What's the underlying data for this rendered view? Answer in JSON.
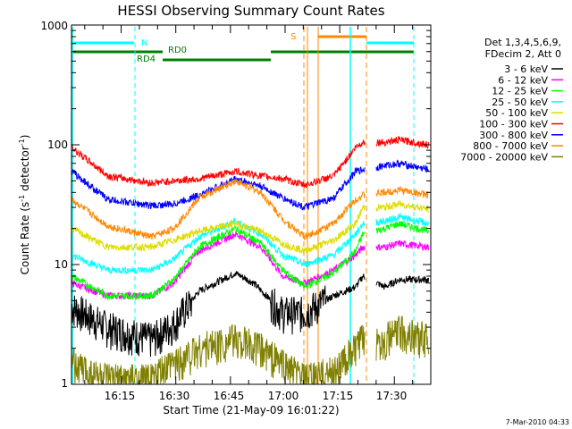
{
  "chart_data": {
    "type": "line",
    "title": "HESSI Observing Summary Count Rates",
    "xlabel": "Start Time (21-May-09 16:01:22)",
    "ylabel_main": "Count Rate (s",
    "ylabel_sup1": "-1",
    "ylabel_mid": " detector",
    "ylabel_sup2": "-1",
    "ylabel_end": ")",
    "x_ticks": [
      "16:15",
      "16:30",
      "16:45",
      "17:00",
      "17:15",
      "17:30"
    ],
    "y_ticks": [
      "1",
      "10",
      "100",
      "1000"
    ],
    "yscale": "log",
    "ylim": [
      1,
      1000
    ],
    "xlim": [
      "16:01:22",
      "17:40:00"
    ],
    "legend_header": [
      "Det 1,3,4,5,6,9,",
      "FDecim 2, Att 0"
    ],
    "data_gaps": [
      [
        "17:22",
        "17:25"
      ]
    ],
    "series": [
      {
        "name": "3 - 6 keV",
        "color": "#000000",
        "values": [
          [
            0,
            4.5
          ],
          [
            10,
            3.0
          ],
          [
            22,
            2.4
          ],
          [
            28,
            3.2
          ],
          [
            35,
            6
          ],
          [
            45,
            8.5
          ],
          [
            50,
            7
          ],
          [
            58,
            4
          ],
          [
            64,
            4.0
          ],
          [
            72,
            5.5
          ],
          [
            78,
            6.5
          ],
          [
            80,
            8
          ],
          [
            86,
            6.5
          ],
          [
            90,
            7.5
          ],
          [
            98,
            7.5
          ]
        ]
      },
      {
        "name": "6 - 12 keV",
        "color": "#ff00ff",
        "values": [
          [
            0,
            7
          ],
          [
            10,
            5.5
          ],
          [
            22,
            5.5
          ],
          [
            28,
            7
          ],
          [
            35,
            13
          ],
          [
            45,
            18
          ],
          [
            52,
            14
          ],
          [
            58,
            8
          ],
          [
            64,
            7
          ],
          [
            72,
            9
          ],
          [
            78,
            12
          ],
          [
            80,
            14
          ],
          [
            86,
            14
          ],
          [
            90,
            15
          ],
          [
            98,
            14
          ]
        ]
      },
      {
        "name": "12 - 25 keV",
        "color": "#00ff00",
        "values": [
          [
            0,
            8
          ],
          [
            10,
            5.5
          ],
          [
            22,
            5.5
          ],
          [
            28,
            7.5
          ],
          [
            35,
            14
          ],
          [
            45,
            20
          ],
          [
            52,
            15
          ],
          [
            58,
            9
          ],
          [
            64,
            6.5
          ],
          [
            72,
            8.5
          ],
          [
            78,
            13
          ],
          [
            80,
            18
          ],
          [
            86,
            20
          ],
          [
            90,
            22
          ],
          [
            98,
            19
          ]
        ]
      },
      {
        "name": "25 - 50 keV",
        "color": "#00ffff",
        "values": [
          [
            0,
            12
          ],
          [
            10,
            9
          ],
          [
            22,
            9
          ],
          [
            28,
            11
          ],
          [
            35,
            17
          ],
          [
            45,
            23
          ],
          [
            52,
            18
          ],
          [
            58,
            12
          ],
          [
            64,
            10
          ],
          [
            72,
            12
          ],
          [
            78,
            18
          ],
          [
            80,
            22
          ],
          [
            86,
            23
          ],
          [
            90,
            25
          ],
          [
            98,
            22
          ]
        ]
      },
      {
        "name": "50 - 100 keV",
        "color": "#dddd00",
        "values": [
          [
            0,
            20
          ],
          [
            10,
            14
          ],
          [
            22,
            14
          ],
          [
            28,
            16
          ],
          [
            35,
            19
          ],
          [
            45,
            22
          ],
          [
            52,
            19
          ],
          [
            58,
            15
          ],
          [
            64,
            13
          ],
          [
            72,
            16
          ],
          [
            78,
            22
          ],
          [
            80,
            30
          ],
          [
            86,
            30
          ],
          [
            90,
            32
          ],
          [
            98,
            29
          ]
        ]
      },
      {
        "name": "100 - 300 keV",
        "color": "#ff0000",
        "values": [
          [
            0,
            95
          ],
          [
            10,
            55
          ],
          [
            22,
            48
          ],
          [
            28,
            50
          ],
          [
            35,
            52
          ],
          [
            45,
            60
          ],
          [
            52,
            55
          ],
          [
            58,
            52
          ],
          [
            64,
            46
          ],
          [
            72,
            55
          ],
          [
            78,
            95
          ],
          [
            80,
            105
          ],
          [
            86,
            105
          ],
          [
            90,
            110
          ],
          [
            98,
            100
          ]
        ]
      },
      {
        "name": "300 - 800 keV",
        "color": "#0000ff",
        "values": [
          [
            0,
            60
          ],
          [
            10,
            35
          ],
          [
            22,
            31
          ],
          [
            28,
            32
          ],
          [
            35,
            38
          ],
          [
            45,
            52
          ],
          [
            52,
            45
          ],
          [
            58,
            36
          ],
          [
            64,
            30
          ],
          [
            72,
            36
          ],
          [
            78,
            60
          ],
          [
            80,
            62
          ],
          [
            86,
            67
          ],
          [
            90,
            70
          ],
          [
            98,
            62
          ]
        ]
      },
      {
        "name": "800 - 7000 keV",
        "color": "#ff8800",
        "values": [
          [
            0,
            35
          ],
          [
            10,
            21
          ],
          [
            22,
            17
          ],
          [
            28,
            20
          ],
          [
            35,
            36
          ],
          [
            45,
            50
          ],
          [
            52,
            40
          ],
          [
            58,
            24
          ],
          [
            64,
            17
          ],
          [
            72,
            22
          ],
          [
            78,
            35
          ],
          [
            80,
            38
          ],
          [
            86,
            40
          ],
          [
            90,
            42
          ],
          [
            98,
            38
          ]
        ]
      },
      {
        "name": "7000 - 20000 keV",
        "color": "#808000",
        "values": [
          [
            0,
            1.5
          ],
          [
            10,
            1.1
          ],
          [
            22,
            1.1
          ],
          [
            28,
            1.5
          ],
          [
            35,
            2.0
          ],
          [
            45,
            2.4
          ],
          [
            52,
            2.0
          ],
          [
            58,
            1.5
          ],
          [
            64,
            1.1
          ],
          [
            72,
            1.3
          ],
          [
            78,
            2.0
          ],
          [
            80,
            2.4
          ],
          [
            86,
            2.4
          ],
          [
            90,
            2.8
          ],
          [
            98,
            2.4
          ]
        ]
      }
    ],
    "flags": [
      {
        "label": "N",
        "color": "#00ffff"
      },
      {
        "label": "RD0",
        "color": "#008000"
      },
      {
        "label": "RD4",
        "color": "#008000"
      },
      {
        "label": "S",
        "color": "#ff8800"
      }
    ],
    "grid": false,
    "legend_position": "right"
  },
  "footer": {
    "timestamp": "7-Mar-2010 04:33"
  }
}
